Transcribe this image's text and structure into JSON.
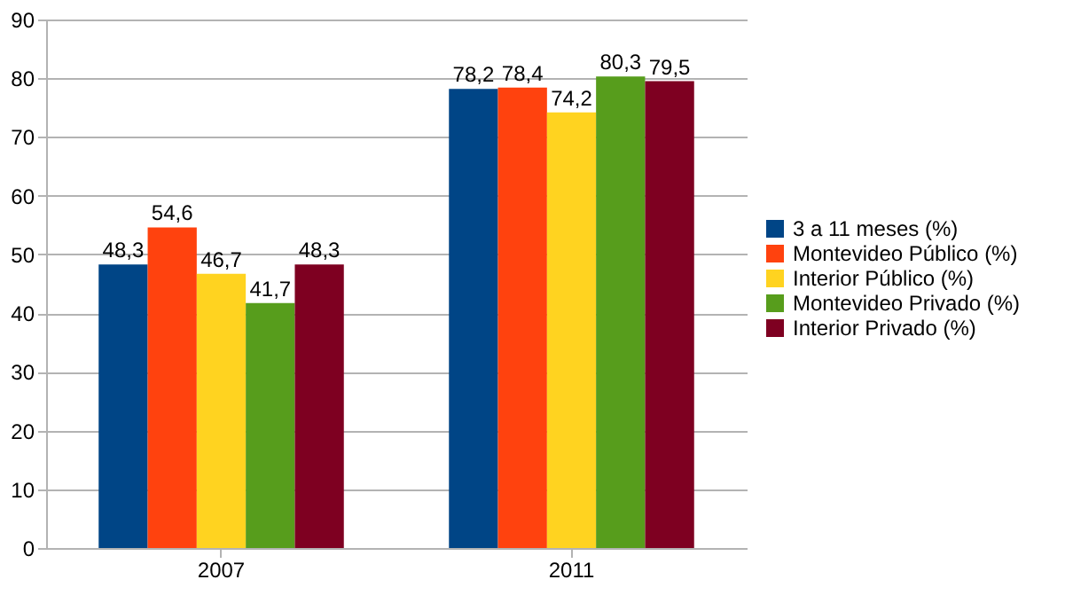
{
  "chart_data": {
    "type": "bar",
    "categories": [
      "2007",
      "2011"
    ],
    "series": [
      {
        "name": "3 a 11 meses (%)",
        "color": "#004586",
        "values": [
          48.3,
          78.2
        ],
        "value_labels": [
          "48,3",
          "78,2"
        ]
      },
      {
        "name": "Montevideo Público (%)",
        "color": "#ff420e",
        "values": [
          54.6,
          78.4
        ],
        "value_labels": [
          "54,6",
          "78,4"
        ]
      },
      {
        "name": "Interior Público (%)",
        "color": "#ffd320",
        "values": [
          46.7,
          74.2
        ],
        "value_labels": [
          "46,7",
          "74,2"
        ]
      },
      {
        "name": "Montevideo Privado (%)",
        "color": "#579d1c",
        "values": [
          41.7,
          80.3
        ],
        "value_labels": [
          "41,7",
          "80,3"
        ]
      },
      {
        "name": "Interior Privado (%)",
        "color": "#7e0021",
        "values": [
          48.3,
          79.5
        ],
        "value_labels": [
          "48,3",
          "79,5"
        ]
      }
    ],
    "ylim": [
      0,
      90
    ],
    "yticks": [
      0,
      10,
      20,
      30,
      40,
      50,
      60,
      70,
      80,
      90
    ],
    "grid": "y",
    "legend": "right"
  }
}
